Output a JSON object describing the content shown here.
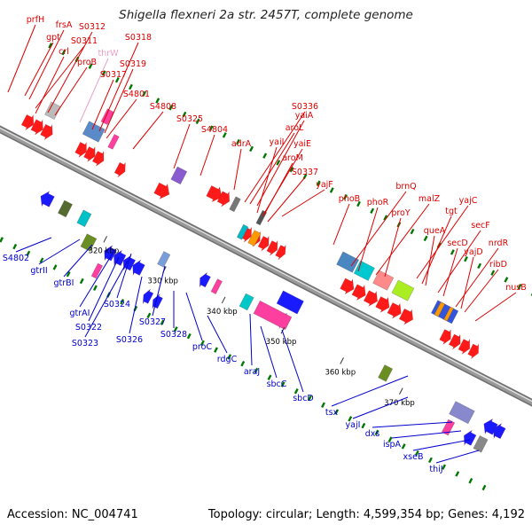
{
  "title": "Shigella flexneri 2a str. 2457T, complete genome",
  "accession_label": "Accession: NC_004741",
  "topology_label": "Topology: circular; Length: 4,599,354 bp; Genes: 4,192",
  "ticks": [
    "320 kbp",
    "330 kbp",
    "340 kbp",
    "350 kbp",
    "360 kbp",
    "370 kbp"
  ],
  "labels_upper": [
    "prfH",
    "frsA",
    "gpt",
    "S0312",
    "S0311",
    "crl",
    "thrW",
    "S0318",
    "proB",
    "S0319",
    "S0317",
    "S4801",
    "S4808",
    "S0325",
    "S4804",
    "adrA",
    "S0336",
    "yaiA",
    "aroL",
    "yaiI",
    "yaiE",
    "aroM",
    "S0337",
    "yajF",
    "phoB",
    "brnQ",
    "phoR",
    "malZ",
    "proY",
    "yajC",
    "tgt",
    "queA",
    "secF",
    "secD",
    "nrdR",
    "yajD",
    "ribD",
    "nusB"
  ],
  "labels_lower": [
    "S4802",
    "gtrII",
    "gtrBI",
    "gtrAI",
    "S0324",
    "S0322",
    "S0323",
    "S0327",
    "S0326",
    "S0328",
    "proC",
    "rdgC",
    "araJ",
    "sbcC",
    "sbcD",
    "tsx",
    "yajI",
    "dxs",
    "ispA",
    "xseB",
    "thiJ"
  ],
  "colors": {
    "forward_label": "#dd0000",
    "reverse_label": "#0000cc",
    "trna_label": "#e8a0c8",
    "forward_gene": "#ff1a1a",
    "reverse_gene": "#1a1aff",
    "backbone": "#9a9a9a",
    "tick": "#007700"
  }
}
